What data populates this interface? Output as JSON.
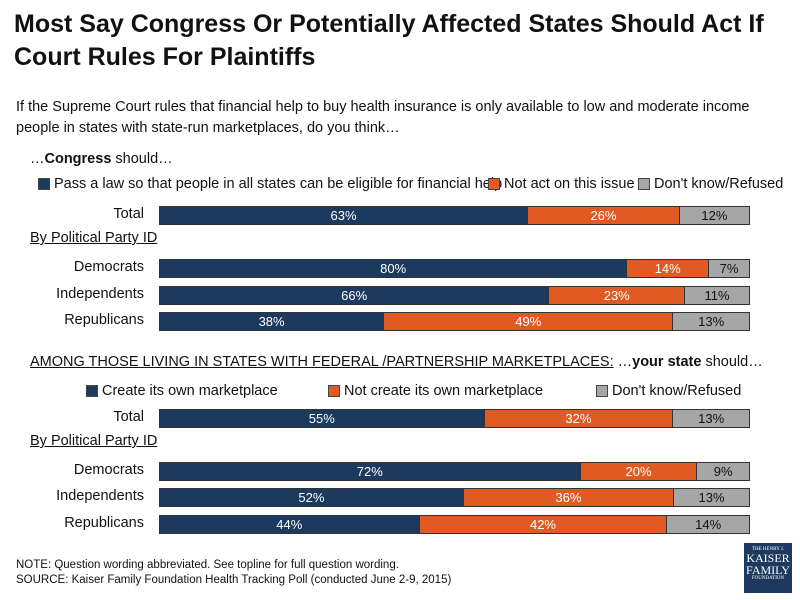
{
  "chart_data": [
    {
      "type": "bar",
      "stacked": true,
      "orientation": "horizontal",
      "question_prefix": "…",
      "question_bold": "Congress",
      "question_suffix": " should…",
      "legend": [
        "Pass a law so that people in all states can be eligible for financial help",
        "Not act on this issue",
        "Don't know/Refused"
      ],
      "colors": [
        "#1c3a5e",
        "#e05a24",
        "#a6a6a6"
      ],
      "group_label": "By Political Party ID",
      "categories": [
        "Total",
        "Democrats",
        "Independents",
        "Republicans"
      ],
      "series": [
        {
          "name": "Pass a law so that people in all states can be eligible for financial help",
          "values": [
            63,
            80,
            66,
            38
          ]
        },
        {
          "name": "Not act on this issue",
          "values": [
            26,
            14,
            23,
            49
          ]
        },
        {
          "name": "Don't know/Refused",
          "values": [
            12,
            7,
            11,
            13
          ]
        }
      ],
      "unit": "%"
    },
    {
      "type": "bar",
      "stacked": true,
      "orientation": "horizontal",
      "question_prefix": "AMONG THOSE LIVING IN STATES WITH FEDERAL /PARTNERSHIP MARKETPLACES:",
      "question_mid": " …",
      "question_bold": "your state",
      "question_suffix": " should…",
      "legend": [
        "Create its own marketplace",
        "Not create its own marketplace",
        "Don't know/Refused"
      ],
      "colors": [
        "#1c3a5e",
        "#e05a24",
        "#a6a6a6"
      ],
      "group_label": "By Political Party ID",
      "categories": [
        "Total",
        "Democrats",
        "Independents",
        "Republicans"
      ],
      "series": [
        {
          "name": "Create its own marketplace",
          "values": [
            55,
            72,
            52,
            44
          ]
        },
        {
          "name": "Not create its own marketplace",
          "values": [
            32,
            20,
            36,
            42
          ]
        },
        {
          "name": "Don't know/Refused",
          "values": [
            13,
            9,
            13,
            14
          ]
        }
      ],
      "unit": "%"
    }
  ],
  "title": "Most Say Congress Or Potentially Affected States Should Act If Court Rules For Plaintiffs",
  "subtitle": "If the Supreme Court rules that financial help to buy health insurance is only available to low and moderate income people in states with state-run marketplaces, do you think…",
  "notes": [
    "NOTE: Question wording abbreviated.  See topline for full question wording.",
    "SOURCE: Kaiser Family Foundation Health Tracking Poll (conducted June 2-9, 2015)"
  ],
  "logo": {
    "text": [
      "THE HENRY J.",
      "KAISER",
      "FAMILY",
      "FOUNDATION"
    ]
  }
}
